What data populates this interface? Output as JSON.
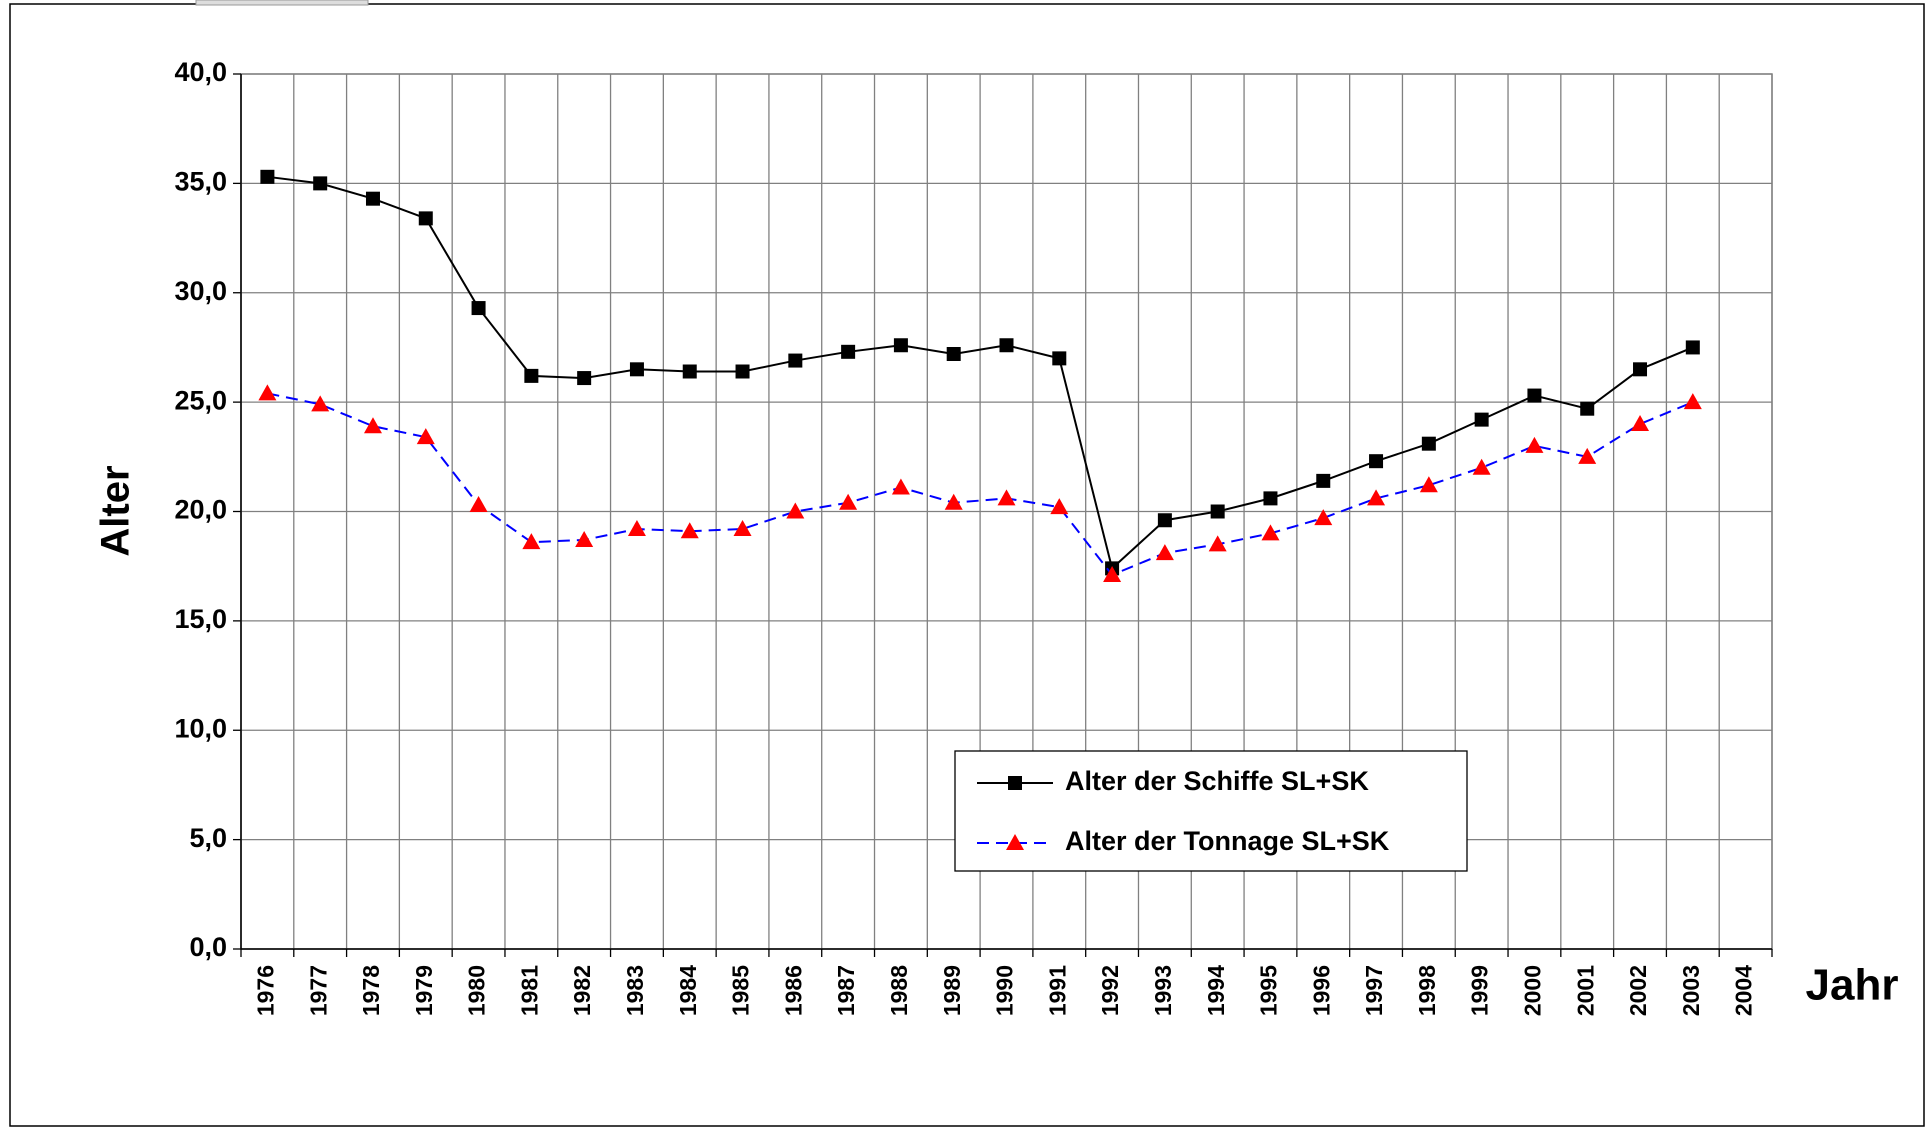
{
  "chart_data": {
    "type": "line",
    "y_label": "Alter",
    "x_label": "Jahr",
    "categories": [
      "1976",
      "1977",
      "1978",
      "1979",
      "1980",
      "1981",
      "1982",
      "1983",
      "1984",
      "1985",
      "1986",
      "1987",
      "1988",
      "1989",
      "1990",
      "1991",
      "1992",
      "1993",
      "1994",
      "1995",
      "1996",
      "1997",
      "1998",
      "1999",
      "2000",
      "2001",
      "2002",
      "2003",
      "2004"
    ],
    "series": [
      {
        "name": "Alter der Schiffe SL+SK",
        "color": "#000000",
        "marker": "square",
        "marker_color": "#000000",
        "dashed": false,
        "values": [
          35.3,
          35.0,
          34.3,
          33.4,
          29.3,
          26.2,
          26.1,
          26.5,
          26.4,
          26.4,
          26.9,
          27.3,
          27.6,
          27.2,
          27.6,
          27.0,
          17.4,
          19.6,
          20.0,
          20.6,
          21.4,
          22.3,
          23.1,
          24.2,
          25.3,
          24.7,
          26.5,
          27.5,
          null
        ]
      },
      {
        "name": "Alter der Tonnage SL+SK",
        "color": "#0000ff",
        "marker": "triangle",
        "marker_color": "#ff0000",
        "dashed": true,
        "values": [
          25.4,
          24.9,
          23.9,
          23.4,
          20.3,
          18.6,
          18.7,
          19.2,
          19.1,
          19.2,
          20.0,
          20.4,
          21.1,
          20.4,
          20.6,
          20.2,
          17.1,
          18.1,
          18.5,
          19.0,
          19.7,
          20.6,
          21.2,
          22.0,
          23.0,
          22.5,
          24.0,
          25.0,
          null
        ]
      }
    ],
    "ylim": [
      0,
      40
    ],
    "yticks": [
      {
        "value": 0,
        "label": "0,0"
      },
      {
        "value": 5,
        "label": "5,0"
      },
      {
        "value": 10,
        "label": "10,0"
      },
      {
        "value": 15,
        "label": "15,0"
      },
      {
        "value": 20,
        "label": "20,0"
      },
      {
        "value": 25,
        "label": "25,0"
      },
      {
        "value": 30,
        "label": "30,0"
      },
      {
        "value": 35,
        "label": "35,0"
      },
      {
        "value": 40,
        "label": "40,0"
      }
    ],
    "grid": true,
    "legend": "lower right"
  }
}
